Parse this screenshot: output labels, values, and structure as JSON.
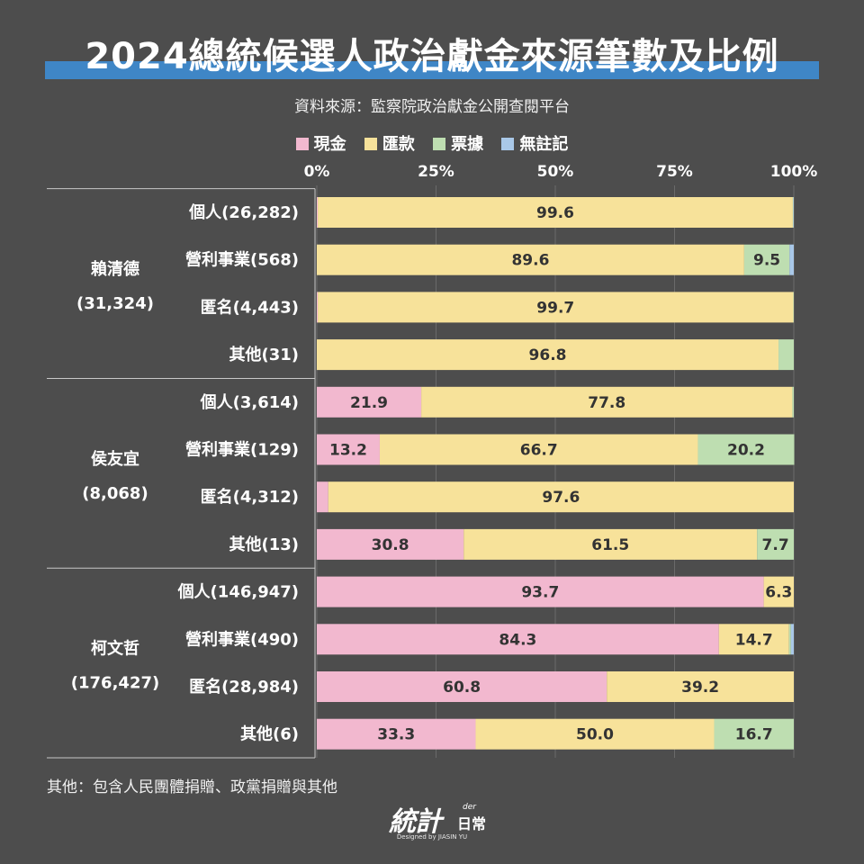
{
  "title": "2024總統候選人政治獻金來源筆數及比例",
  "source": "資料來源：監察院政治獻金公開查閱平台",
  "footnote": "其他：包含人民團體捐贈、政黨捐贈與其他",
  "logo": {
    "main": "統計",
    "sub": "der",
    "sub2": "日常",
    "credit": "Designed by JIASIN YU"
  },
  "colors": {
    "cash": "#f2b8cf",
    "transfer": "#f7e29a",
    "check": "#bedeb1",
    "unrecorded": "#a9c8e8",
    "background": "#4d4d4d",
    "title_bar": "#3f86c6"
  },
  "chart_data": {
    "type": "bar",
    "orientation": "horizontal",
    "stacked": true,
    "unit": "%",
    "xlim": [
      0,
      100
    ],
    "xticks": [
      "0%",
      "25%",
      "50%",
      "75%",
      "100%"
    ],
    "tick_values": [
      0,
      25,
      50,
      75,
      100
    ],
    "legend_position": "top",
    "grid": true,
    "series": [
      {
        "name": "現金",
        "color": "#f2b8cf"
      },
      {
        "name": "匯款",
        "color": "#f7e29a"
      },
      {
        "name": "票據",
        "color": "#bedeb1"
      },
      {
        "name": "無註記",
        "color": "#a9c8e8"
      }
    ],
    "groups": [
      {
        "name": "賴清德",
        "count": "(31,324)",
        "rows": [
          {
            "label": "個人(26,282)",
            "values": [
              0.2,
              99.6,
              0.1,
              0.1
            ],
            "labels": [
              "",
              "99.6",
              "",
              ""
            ]
          },
          {
            "label": "營利事業(568)",
            "values": [
              0.0,
              89.6,
              9.5,
              0.9
            ],
            "labels": [
              "",
              "89.6",
              "9.5",
              ""
            ]
          },
          {
            "label": "匿名(4,443)",
            "values": [
              0.2,
              99.7,
              0.1,
              0.0
            ],
            "labels": [
              "",
              "99.7",
              "",
              ""
            ]
          },
          {
            "label": "其他(31)",
            "values": [
              0.0,
              96.8,
              3.2,
              0.0
            ],
            "labels": [
              "",
              "96.8",
              "",
              ""
            ]
          }
        ]
      },
      {
        "name": "侯友宜",
        "count": "(8,068)",
        "rows": [
          {
            "label": "個人(3,614)",
            "values": [
              21.9,
              77.8,
              0.3,
              0.0
            ],
            "labels": [
              "21.9",
              "77.8",
              "",
              ""
            ]
          },
          {
            "label": "營利事業(129)",
            "values": [
              13.2,
              66.7,
              20.2,
              0.0
            ],
            "labels": [
              "13.2",
              "66.7",
              "20.2",
              ""
            ]
          },
          {
            "label": "匿名(4,312)",
            "values": [
              2.4,
              97.6,
              0.0,
              0.0
            ],
            "labels": [
              "",
              "97.6",
              "",
              ""
            ]
          },
          {
            "label": "其他(13)",
            "values": [
              30.8,
              61.5,
              7.7,
              0.0
            ],
            "labels": [
              "30.8",
              "61.5",
              "7.7",
              ""
            ]
          }
        ]
      },
      {
        "name": "柯文哲",
        "count": "(176,427)",
        "rows": [
          {
            "label": "個人(146,947)",
            "values": [
              93.7,
              6.3,
              0.0,
              0.0
            ],
            "labels": [
              "93.7",
              "6.3",
              "",
              ""
            ]
          },
          {
            "label": "營利事業(490)",
            "values": [
              84.3,
              14.7,
              0.4,
              0.6
            ],
            "labels": [
              "84.3",
              "14.7",
              "",
              ""
            ]
          },
          {
            "label": "匿名(28,984)",
            "values": [
              60.8,
              39.2,
              0.0,
              0.0
            ],
            "labels": [
              "60.8",
              "39.2",
              "",
              ""
            ]
          },
          {
            "label": "其他(6)",
            "values": [
              33.3,
              50.0,
              16.7,
              0.0
            ],
            "labels": [
              "33.3",
              "50.0",
              "16.7",
              ""
            ]
          }
        ]
      }
    ]
  }
}
